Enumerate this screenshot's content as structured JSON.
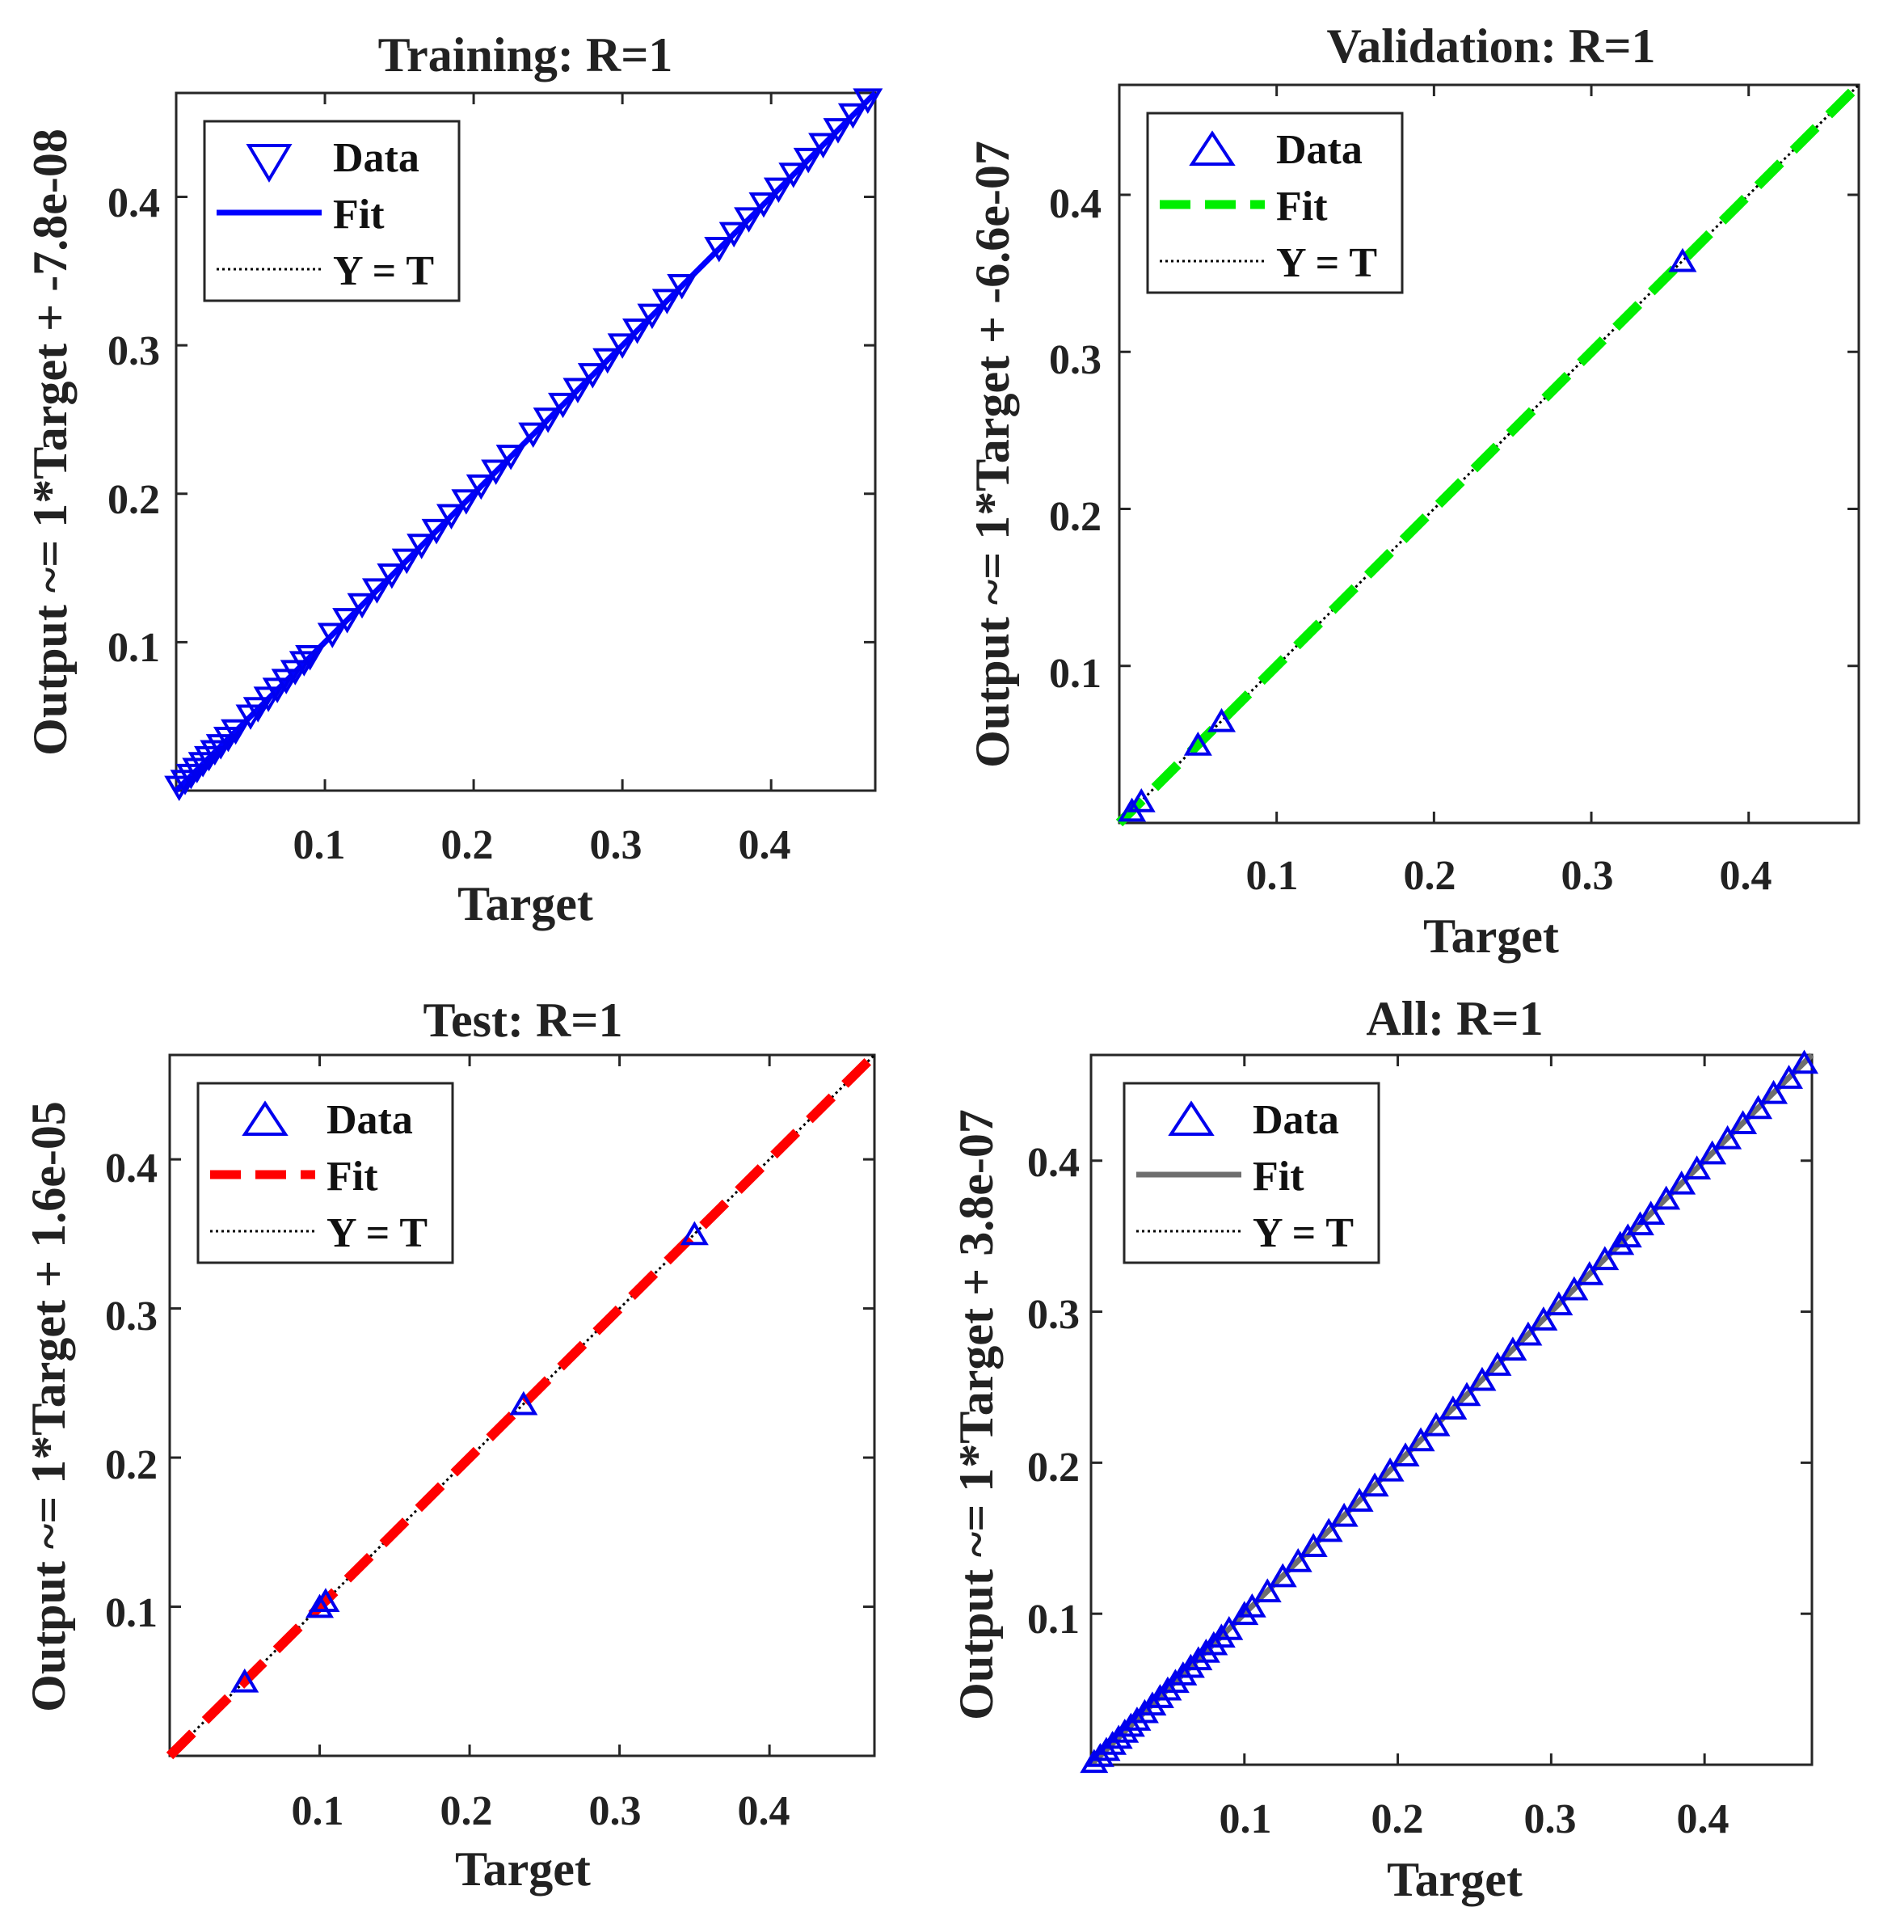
{
  "colors": {
    "marker": "#0000ee",
    "identity": "#000000",
    "axes": "#262626"
  },
  "chart_data": [
    {
      "type": "scatter",
      "title": "Training: R=1",
      "xlabel": "Target",
      "ylabel": "Output ~= 1*Target + -7.8e-08",
      "xlim": [
        0,
        0.47
      ],
      "ylim": [
        0,
        0.47
      ],
      "xticks": [
        "0.1",
        "0.2",
        "0.3",
        "0.4"
      ],
      "yticks": [
        "0.1",
        "0.2",
        "0.3",
        "0.4"
      ],
      "marker": "triangle-down",
      "fit_color": "#0000ff",
      "fit_style": "solid",
      "legend": {
        "location": "top-left",
        "entries": [
          "Data",
          "Fit",
          "Y = T"
        ]
      },
      "points": [
        [
          0.002,
          0.002
        ],
        [
          0.006,
          0.006
        ],
        [
          0.01,
          0.01
        ],
        [
          0.014,
          0.014
        ],
        [
          0.018,
          0.018
        ],
        [
          0.022,
          0.022
        ],
        [
          0.026,
          0.026
        ],
        [
          0.03,
          0.03
        ],
        [
          0.035,
          0.035
        ],
        [
          0.04,
          0.04
        ],
        [
          0.05,
          0.05
        ],
        [
          0.055,
          0.055
        ],
        [
          0.062,
          0.062
        ],
        [
          0.068,
          0.068
        ],
        [
          0.074,
          0.074
        ],
        [
          0.08,
          0.08
        ],
        [
          0.086,
          0.086
        ],
        [
          0.09,
          0.09
        ],
        [
          0.105,
          0.105
        ],
        [
          0.115,
          0.115
        ],
        [
          0.125,
          0.125
        ],
        [
          0.135,
          0.135
        ],
        [
          0.145,
          0.145
        ],
        [
          0.155,
          0.155
        ],
        [
          0.165,
          0.165
        ],
        [
          0.175,
          0.175
        ],
        [
          0.185,
          0.185
        ],
        [
          0.195,
          0.195
        ],
        [
          0.205,
          0.205
        ],
        [
          0.215,
          0.215
        ],
        [
          0.225,
          0.225
        ],
        [
          0.24,
          0.24
        ],
        [
          0.25,
          0.25
        ],
        [
          0.26,
          0.26
        ],
        [
          0.27,
          0.27
        ],
        [
          0.28,
          0.28
        ],
        [
          0.29,
          0.29
        ],
        [
          0.3,
          0.3
        ],
        [
          0.31,
          0.31
        ],
        [
          0.32,
          0.32
        ],
        [
          0.33,
          0.33
        ],
        [
          0.34,
          0.34
        ],
        [
          0.365,
          0.365
        ],
        [
          0.375,
          0.375
        ],
        [
          0.385,
          0.385
        ],
        [
          0.395,
          0.395
        ],
        [
          0.405,
          0.405
        ],
        [
          0.415,
          0.415
        ],
        [
          0.425,
          0.425
        ],
        [
          0.435,
          0.435
        ],
        [
          0.445,
          0.445
        ],
        [
          0.455,
          0.455
        ],
        [
          0.465,
          0.465
        ]
      ]
    },
    {
      "type": "scatter",
      "title": "Validation: R=1",
      "xlabel": "Target",
      "ylabel": "Output ~= 1*Target + -6.6e-07",
      "xlim": [
        0,
        0.47
      ],
      "ylim": [
        0,
        0.47
      ],
      "xticks": [
        "0.1",
        "0.2",
        "0.3",
        "0.4"
      ],
      "yticks": [
        "0.1",
        "0.2",
        "0.3",
        "0.4"
      ],
      "marker": "triangle-up",
      "fit_color": "#00ee00",
      "fit_style": "dashed",
      "legend": {
        "location": "top-left",
        "entries": [
          "Data",
          "Fit",
          "Y = T"
        ]
      },
      "points": [
        [
          0.008,
          0.008
        ],
        [
          0.014,
          0.014
        ],
        [
          0.05,
          0.05
        ],
        [
          0.065,
          0.065
        ],
        [
          0.358,
          0.358
        ]
      ]
    },
    {
      "type": "scatter",
      "title": "Test: R=1",
      "xlabel": "Target",
      "ylabel": "Output ~= 1*Target + 1.6e-05",
      "xlim": [
        0,
        0.47
      ],
      "ylim": [
        0,
        0.47
      ],
      "xticks": [
        "0.1",
        "0.2",
        "0.3",
        "0.4"
      ],
      "yticks": [
        "0.1",
        "0.2",
        "0.3",
        "0.4"
      ],
      "marker": "triangle-up",
      "fit_color": "#ff0000",
      "fit_style": "dashed",
      "legend": {
        "location": "top-left",
        "entries": [
          "Data",
          "Fit",
          "Y = T"
        ]
      },
      "points": [
        [
          0.05,
          0.05
        ],
        [
          0.1,
          0.1
        ],
        [
          0.104,
          0.104
        ],
        [
          0.236,
          0.236
        ],
        [
          0.35,
          0.35
        ]
      ]
    },
    {
      "type": "scatter",
      "title": "All: R=1",
      "xlabel": "Target",
      "ylabel": "Output ~= 1*Target + 3.8e-07",
      "xlim": [
        0,
        0.47
      ],
      "ylim": [
        0,
        0.47
      ],
      "xticks": [
        "0.1",
        "0.2",
        "0.3",
        "0.4"
      ],
      "yticks": [
        "0.1",
        "0.2",
        "0.3",
        "0.4"
      ],
      "marker": "triangle-up",
      "fit_color": "#6e6e6e",
      "fit_style": "solid",
      "legend": {
        "location": "top-left",
        "entries": [
          "Data",
          "Fit",
          "Y = T"
        ]
      },
      "points": [
        [
          0.002,
          0.002
        ],
        [
          0.006,
          0.006
        ],
        [
          0.01,
          0.01
        ],
        [
          0.014,
          0.014
        ],
        [
          0.018,
          0.018
        ],
        [
          0.022,
          0.022
        ],
        [
          0.026,
          0.026
        ],
        [
          0.03,
          0.03
        ],
        [
          0.035,
          0.035
        ],
        [
          0.04,
          0.04
        ],
        [
          0.045,
          0.045
        ],
        [
          0.05,
          0.05
        ],
        [
          0.055,
          0.055
        ],
        [
          0.06,
          0.06
        ],
        [
          0.065,
          0.065
        ],
        [
          0.07,
          0.07
        ],
        [
          0.075,
          0.075
        ],
        [
          0.08,
          0.08
        ],
        [
          0.085,
          0.085
        ],
        [
          0.09,
          0.09
        ],
        [
          0.1,
          0.1
        ],
        [
          0.105,
          0.105
        ],
        [
          0.115,
          0.115
        ],
        [
          0.125,
          0.125
        ],
        [
          0.135,
          0.135
        ],
        [
          0.145,
          0.145
        ],
        [
          0.155,
          0.155
        ],
        [
          0.165,
          0.165
        ],
        [
          0.175,
          0.175
        ],
        [
          0.185,
          0.185
        ],
        [
          0.195,
          0.195
        ],
        [
          0.205,
          0.205
        ],
        [
          0.215,
          0.215
        ],
        [
          0.225,
          0.225
        ],
        [
          0.236,
          0.236
        ],
        [
          0.245,
          0.245
        ],
        [
          0.255,
          0.255
        ],
        [
          0.265,
          0.265
        ],
        [
          0.275,
          0.275
        ],
        [
          0.285,
          0.285
        ],
        [
          0.295,
          0.295
        ],
        [
          0.305,
          0.305
        ],
        [
          0.315,
          0.315
        ],
        [
          0.325,
          0.325
        ],
        [
          0.335,
          0.335
        ],
        [
          0.345,
          0.345
        ],
        [
          0.35,
          0.35
        ],
        [
          0.358,
          0.358
        ],
        [
          0.365,
          0.365
        ],
        [
          0.375,
          0.375
        ],
        [
          0.385,
          0.385
        ],
        [
          0.395,
          0.395
        ],
        [
          0.405,
          0.405
        ],
        [
          0.415,
          0.415
        ],
        [
          0.425,
          0.425
        ],
        [
          0.435,
          0.435
        ],
        [
          0.445,
          0.445
        ],
        [
          0.455,
          0.455
        ],
        [
          0.465,
          0.465
        ]
      ]
    }
  ]
}
